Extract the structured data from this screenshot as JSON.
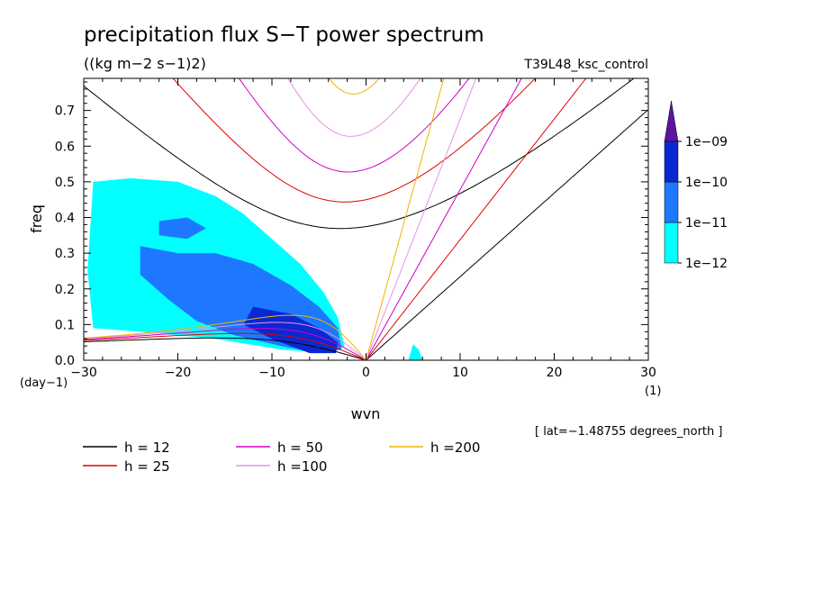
{
  "chart_data": {
    "type": "contour",
    "title": "precipitation flux S−T power spectrum",
    "units": "((kg m−2 s−1)2)",
    "experiment": "T39L48_ksc_control",
    "xlabel": "wvn",
    "ylabel": "freq",
    "xunit": "(1)",
    "yunit": "(day−1)",
    "xlim": [
      -30,
      30
    ],
    "ylim": [
      0,
      0.79
    ],
    "xticks": [
      -30,
      -20,
      -10,
      0,
      10,
      20,
      30
    ],
    "xtick_labels": [
      "−30",
      "−20",
      "−10",
      "0",
      "10",
      "20",
      "30"
    ],
    "yticks": [
      0.0,
      0.1,
      0.2,
      0.3,
      0.4,
      0.5,
      0.6,
      0.7
    ],
    "ytick_labels": [
      "0.0",
      "0.1",
      "0.2",
      "0.3",
      "0.4",
      "0.5",
      "0.6",
      "0.7"
    ],
    "latitude_note": "[ lat=−1.48755 degrees_north ]",
    "colorbar": {
      "levels": [
        "1e−12",
        "1e−11",
        "1e−10",
        "1e−09"
      ],
      "colors": [
        "#00ffff",
        "#1e78ff",
        "#0a28d2",
        "#5a14a0"
      ]
    },
    "dispersion_curves": [
      {
        "label": "h = 12",
        "h": 12,
        "color": "#000000"
      },
      {
        "label": "h = 25",
        "h": 25,
        "color": "#e00000"
      },
      {
        "label": "h = 50",
        "h": 50,
        "color": "#d000c8"
      },
      {
        "label": "h =100",
        "h": 100,
        "color": "#e890e8"
      },
      {
        "label": "h =200",
        "h": 200,
        "color": "#f0b400"
      }
    ],
    "shaded_regions": [
      {
        "level": "1e−12",
        "color": "#00ffff",
        "polygon": [
          [
            -29,
            0.5
          ],
          [
            -25,
            0.51
          ],
          [
            -20,
            0.5
          ],
          [
            -16,
            0.46
          ],
          [
            -13,
            0.41
          ],
          [
            -10,
            0.34
          ],
          [
            -7,
            0.27
          ],
          [
            -4.5,
            0.19
          ],
          [
            -3,
            0.12
          ],
          [
            -2.3,
            0.04
          ],
          [
            -4,
            0.02
          ],
          [
            -9,
            0.03
          ],
          [
            -16,
            0.06
          ],
          [
            -24,
            0.08
          ],
          [
            -29,
            0.09
          ],
          [
            -29.6,
            0.25
          ]
        ]
      },
      {
        "level": "1e−11",
        "color": "#1e78ff",
        "polygon": [
          [
            -24,
            0.32
          ],
          [
            -20,
            0.3
          ],
          [
            -16,
            0.3
          ],
          [
            -12,
            0.27
          ],
          [
            -8,
            0.21
          ],
          [
            -5,
            0.15
          ],
          [
            -3,
            0.09
          ],
          [
            -2.6,
            0.03
          ],
          [
            -5,
            0.02
          ],
          [
            -9,
            0.04
          ],
          [
            -14,
            0.07
          ],
          [
            -18,
            0.11
          ],
          [
            -21,
            0.17
          ],
          [
            -24,
            0.24
          ]
        ]
      },
      {
        "level": "1e−10",
        "color": "#0a28d2",
        "polygon": [
          [
            -12,
            0.15
          ],
          [
            -8,
            0.13
          ],
          [
            -5,
            0.09
          ],
          [
            -3,
            0.05
          ],
          [
            -3.2,
            0.02
          ],
          [
            -6,
            0.02
          ],
          [
            -10,
            0.06
          ],
          [
            -13,
            0.1
          ]
        ]
      },
      {
        "level": "1e−11",
        "color": "#1e78ff",
        "polygon": [
          [
            -22,
            0.39
          ],
          [
            -19,
            0.4
          ],
          [
            -17,
            0.37
          ],
          [
            -19,
            0.34
          ],
          [
            -22,
            0.35
          ]
        ]
      },
      {
        "level": "1e−12",
        "color": "#00ffff",
        "polygon": [
          [
            4.5,
            0.0
          ],
          [
            5.0,
            0.045
          ],
          [
            5.6,
            0.03
          ],
          [
            6.0,
            0.0
          ]
        ]
      }
    ]
  }
}
